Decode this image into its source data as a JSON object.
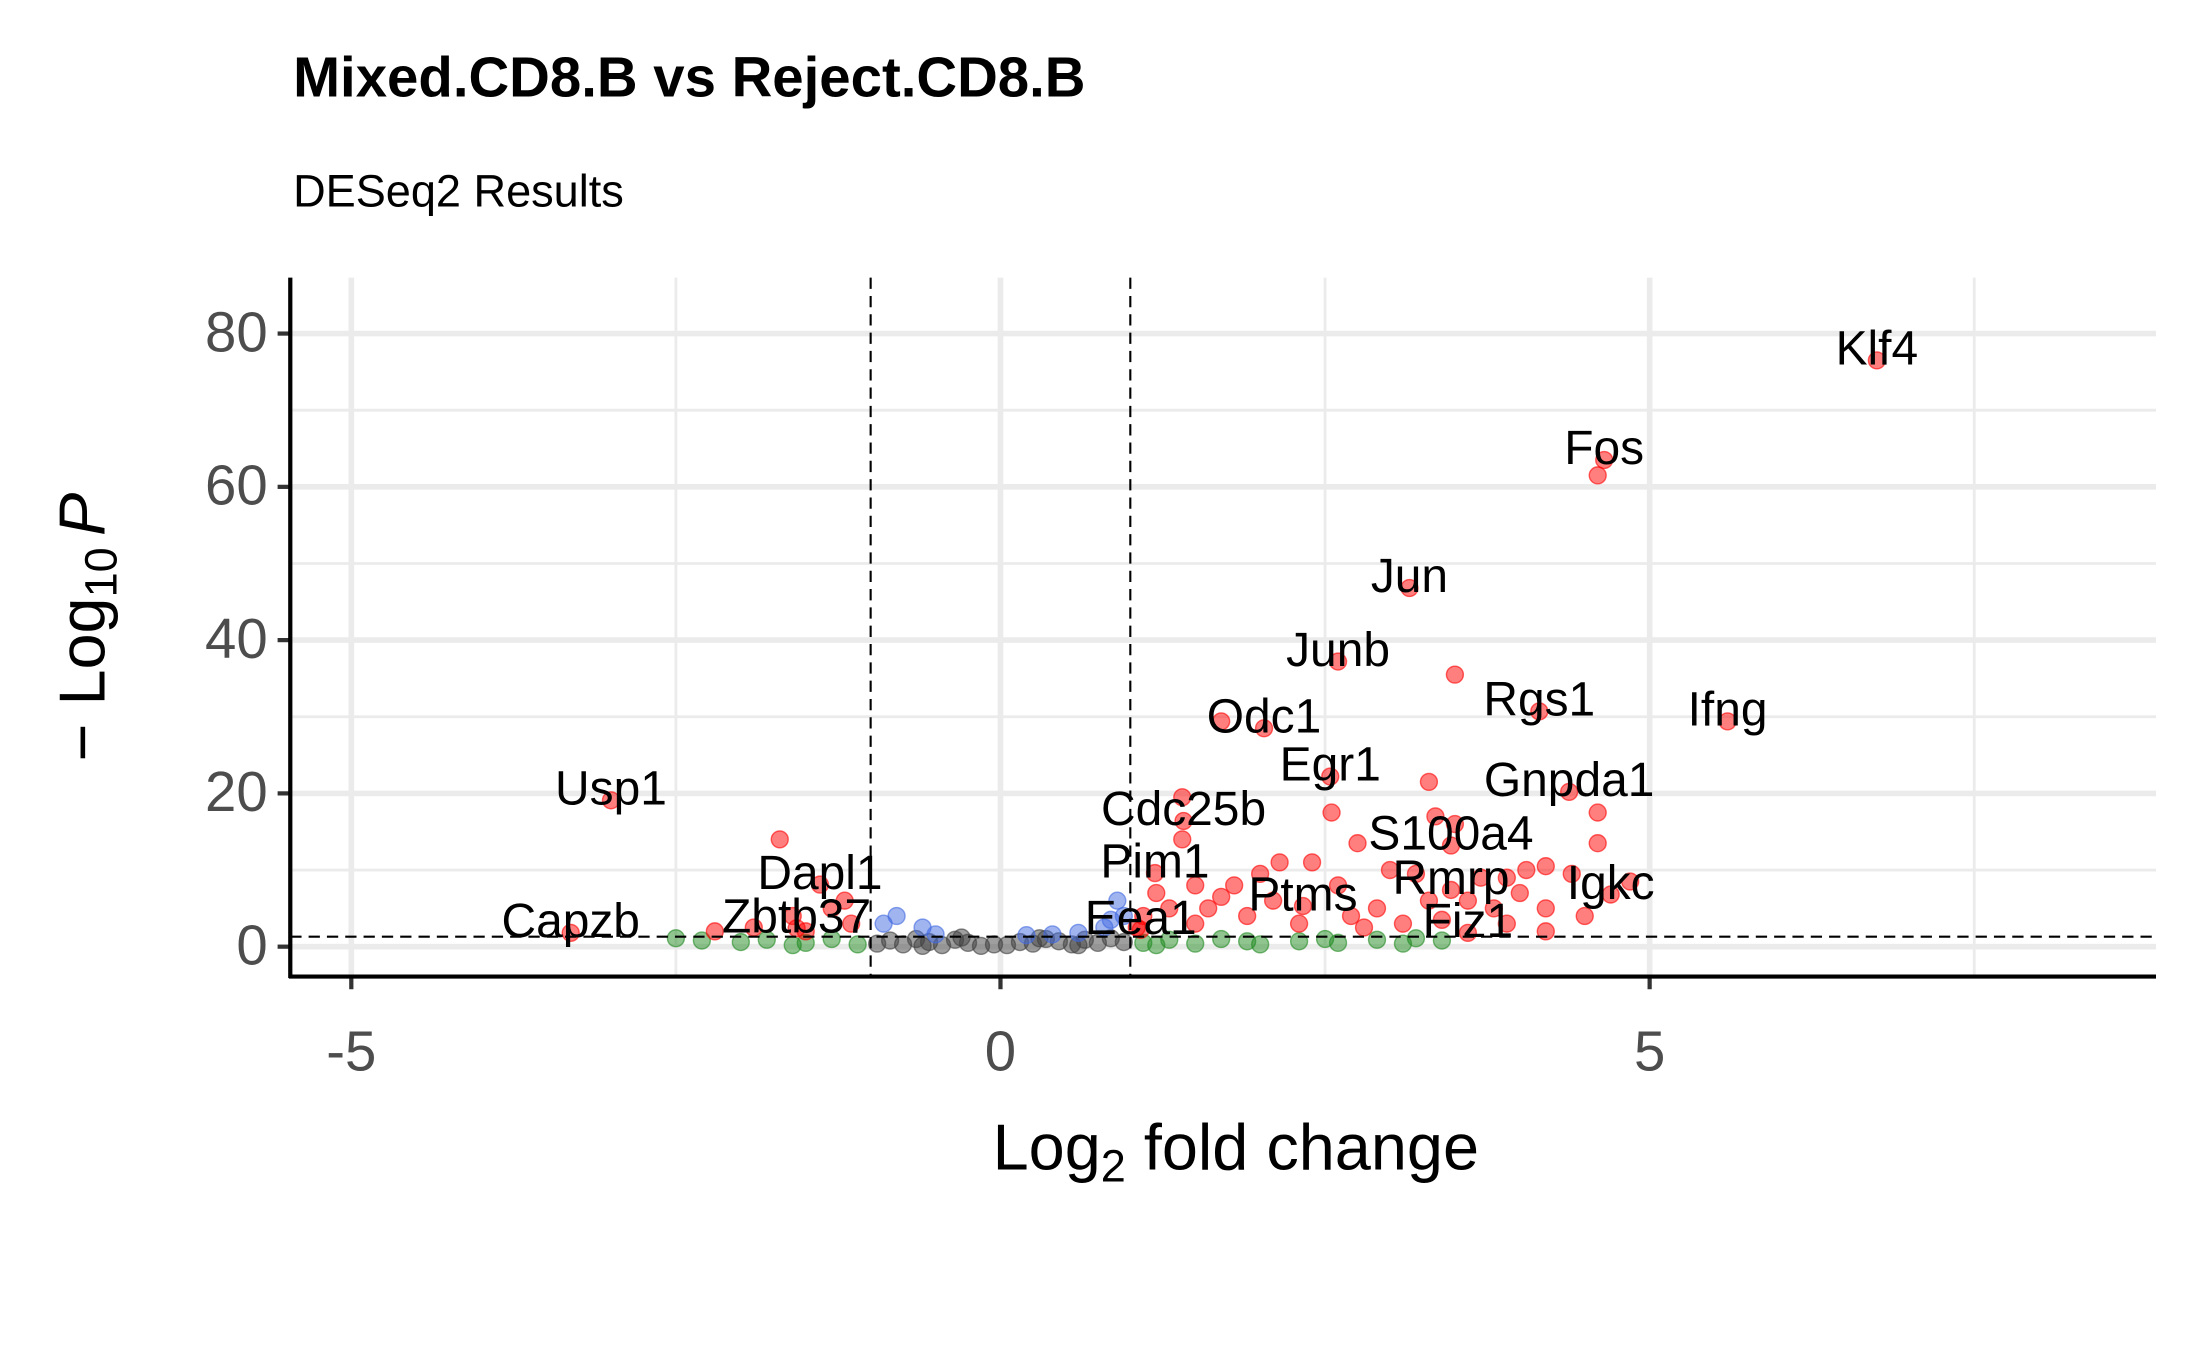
{
  "chart_data": {
    "type": "scatter",
    "title": "Mixed.CD8.B vs Reject.CD8.B",
    "subtitle": "DESeq2 Results",
    "x_label": [
      "Log",
      "2",
      " fold change"
    ],
    "y_label": [
      "− Log",
      "10",
      "P"
    ],
    "xlim": [
      -5.47,
      8.9
    ],
    "ylim": [
      -3.9,
      87.3
    ],
    "xticks": [
      -5,
      0,
      5
    ],
    "yticks": [
      0,
      20,
      40,
      60,
      80
    ],
    "minor_xticks": [
      -2.5,
      2.5,
      7.5
    ],
    "minor_yticks": [
      10,
      30,
      50,
      70
    ],
    "grid": true,
    "vlines": [
      -1,
      1
    ],
    "hline": 1.3,
    "series": [
      {
        "color": "#404040",
        "x": [
          -0.95,
          -0.85,
          -0.75,
          -0.65,
          -0.55,
          -0.45,
          -0.35,
          -0.25,
          -0.15,
          -0.05,
          0.05,
          0.15,
          0.25,
          0.35,
          0.45,
          0.55,
          0.65,
          0.75,
          0.85,
          0.95,
          -0.3,
          0.3,
          -0.6,
          0.6
        ],
        "y": [
          0.4,
          0.8,
          0.3,
          1.0,
          0.6,
          0.2,
          0.9,
          0.5,
          0.1,
          0.3,
          0.2,
          0.6,
          0.4,
          1.0,
          0.7,
          0.3,
          0.9,
          0.5,
          1.1,
          0.6,
          1.2,
          1.1,
          0.1,
          0.2
        ]
      },
      {
        "color": "#228b22",
        "x": [
          -2.5,
          -2.3,
          -2.0,
          -1.8,
          -1.5,
          -1.3,
          -1.1,
          -1.6,
          1.1,
          1.3,
          1.5,
          1.7,
          2.0,
          2.3,
          2.6,
          2.9,
          3.1,
          3.4,
          3.2,
          1.2,
          1.9,
          2.5
        ],
        "y": [
          1.1,
          0.8,
          0.6,
          0.9,
          0.5,
          1.0,
          0.3,
          0.2,
          0.5,
          0.9,
          0.4,
          1.0,
          0.3,
          0.7,
          0.5,
          0.9,
          0.4,
          0.8,
          1.1,
          0.2,
          0.7,
          1.0
        ]
      },
      {
        "color": "#4169e1",
        "x": [
          0.9,
          0.95,
          0.8,
          0.6,
          0.4,
          -0.6,
          -0.8,
          -0.9,
          -0.5,
          0.2,
          0.85
        ],
        "y": [
          6,
          4,
          2.5,
          1.8,
          1.6,
          2.5,
          4,
          3,
          1.6,
          1.5,
          3.5
        ]
      },
      {
        "color": "#ff0000",
        "x": [
          3.5,
          1.4,
          1.4,
          3.3,
          2.55,
          3.5,
          3.35,
          4.6,
          4.6,
          4.4,
          4.85,
          4.2,
          4.2,
          4.2,
          2.15,
          2.4,
          2.75,
          3.0,
          3.2,
          3.7,
          3.9,
          4.05,
          4.0,
          3.8,
          3.6,
          1.8,
          1.5,
          1.2,
          1.1,
          1.3,
          1.6,
          1.9,
          2.1,
          2.3,
          2.7,
          2.9,
          3.1,
          3.3,
          1.05,
          1.5,
          -1.7,
          -1.6,
          -1.3,
          -1.15,
          -2.2,
          -1.9,
          -1.5,
          -1.2,
          2.6,
          2.0,
          1.7,
          2.8,
          3.4,
          3.9,
          4.5,
          1.7,
          4.6
        ],
        "y": [
          35.5,
          19.5,
          14,
          21.5,
          17.5,
          16,
          17,
          17.5,
          13.5,
          9.5,
          8.5,
          5,
          2,
          10.5,
          11,
          11,
          13.5,
          10,
          9.5,
          9,
          9,
          10,
          7,
          5,
          6,
          8,
          8,
          7,
          4,
          5,
          5,
          4,
          6,
          3,
          4,
          5,
          3,
          6,
          2.5,
          3,
          14,
          4,
          5,
          3,
          2,
          2.5,
          2,
          6,
          8,
          9.5,
          6.5,
          2.5,
          3.5,
          3,
          4,
          29.4,
          61.5
        ]
      }
    ],
    "labels": [
      {
        "text": "Klf4",
        "x": 6.75,
        "y": 76.5
      },
      {
        "text": "Fos",
        "x": 4.65,
        "y": 63.5
      },
      {
        "text": "Jun",
        "x": 3.15,
        "y": 46.8
      },
      {
        "text": "Junb",
        "x": 2.6,
        "y": 37.2
      },
      {
        "text": "Rgs1",
        "x": 4.15,
        "y": 30.7
      },
      {
        "text": "Ifng",
        "x": 5.6,
        "y": 29.4
      },
      {
        "text": "Odc1",
        "x": 2.03,
        "y": 28.5
      },
      {
        "text": "Egr1",
        "x": 2.54,
        "y": 22.2
      },
      {
        "text": "Gnpda1",
        "x": 4.38,
        "y": 20.2
      },
      {
        "text": "Cdc25b",
        "x": 1.41,
        "y": 16.4
      },
      {
        "text": "S100a4",
        "x": 3.47,
        "y": 13.2
      },
      {
        "text": "Pim1",
        "x": 1.19,
        "y": 9.6
      },
      {
        "text": "Rmrp",
        "x": 3.47,
        "y": 7.4
      },
      {
        "text": "Igkc",
        "x": 4.7,
        "y": 6.8
      },
      {
        "text": "Ptms",
        "x": 2.33,
        "y": 5.3
      },
      {
        "text": "Fiz1",
        "x": 3.6,
        "y": 1.8
      },
      {
        "text": "Eea1",
        "x": 1.08,
        "y": 2.2
      },
      {
        "text": "Usp1",
        "x": -3.0,
        "y": 19.1
      },
      {
        "text": "Dapl1",
        "x": -1.39,
        "y": 8.1
      },
      {
        "text": "Zbtb37",
        "x": -1.57,
        "y": 2.4
      },
      {
        "text": "Capzb",
        "x": -3.31,
        "y": 1.8
      }
    ],
    "label_color": "#ff0000"
  }
}
